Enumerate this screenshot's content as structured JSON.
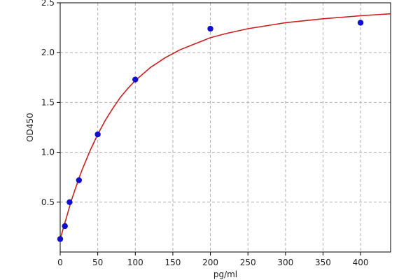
{
  "chart_data": {
    "type": "scatter",
    "title": "",
    "xlabel": "pg/ml",
    "ylabel": "OD450",
    "xlim": [
      0,
      440
    ],
    "ylim": [
      0.0,
      2.5
    ],
    "x_ticks": [
      0,
      50,
      100,
      150,
      200,
      250,
      300,
      350,
      400
    ],
    "y_ticks": [
      0.5,
      1.0,
      1.5,
      2.0,
      2.5
    ],
    "x_tick_labels": [
      "0",
      "50",
      "100",
      "150",
      "200",
      "250",
      "300",
      "350",
      "400"
    ],
    "y_tick_labels": [
      "0.5",
      "1.0",
      "1.5",
      "2.0",
      "2.5"
    ],
    "grid": true,
    "points": {
      "x": [
        0,
        6.25,
        12.5,
        25,
        50,
        100,
        200,
        400
      ],
      "y": [
        0.13,
        0.26,
        0.5,
        0.72,
        1.18,
        1.73,
        2.24,
        2.3
      ]
    },
    "fit_curve": {
      "x": [
        0,
        5,
        10,
        15,
        20,
        25,
        30,
        40,
        50,
        60,
        70,
        80,
        90,
        100,
        120,
        140,
        160,
        180,
        200,
        220,
        250,
        300,
        350,
        400,
        440
      ],
      "y": [
        0.13,
        0.26,
        0.39,
        0.52,
        0.63,
        0.74,
        0.84,
        1.02,
        1.18,
        1.32,
        1.44,
        1.55,
        1.64,
        1.72,
        1.85,
        1.95,
        2.03,
        2.09,
        2.15,
        2.19,
        2.24,
        2.3,
        2.34,
        2.37,
        2.39
      ]
    },
    "colors": {
      "points": "#1010cc",
      "curve": "#c8201e",
      "axis": "#000000",
      "grid": "#b0b0b0"
    }
  }
}
